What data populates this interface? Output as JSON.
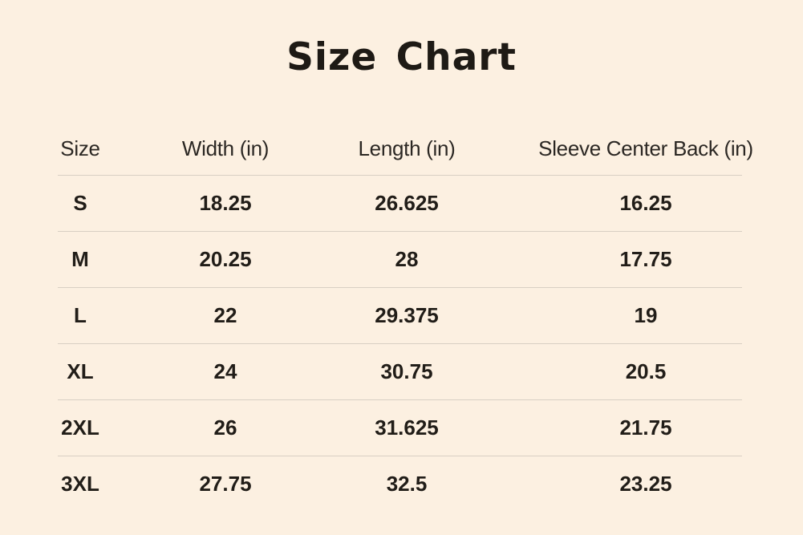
{
  "title": "Size Chart",
  "colors": {
    "background": "#FCF0E1",
    "title_text": "#1E1A15",
    "data_text": "#211D18",
    "header_text": "#2B2723",
    "divider_line": "#D8CFC3"
  },
  "table": {
    "columns": [
      "Size",
      "Width (in)",
      "Length (in)",
      "Sleeve Center Back (in)"
    ],
    "rows": [
      {
        "size": "S",
        "width": "18.25",
        "length": "26.625",
        "sleeve": "16.25"
      },
      {
        "size": "M",
        "width": "20.25",
        "length": "28",
        "sleeve": "17.75"
      },
      {
        "size": "L",
        "width": "22",
        "length": "29.375",
        "sleeve": "19"
      },
      {
        "size": "XL",
        "width": "24",
        "length": "30.75",
        "sleeve": "20.5"
      },
      {
        "size": "2XL",
        "width": "26",
        "length": "31.625",
        "sleeve": "21.75"
      },
      {
        "size": "3XL",
        "width": "27.75",
        "length": "32.5",
        "sleeve": "23.25"
      }
    ]
  },
  "chart_data": {
    "type": "table",
    "title": "Size Chart",
    "columns": [
      "Size",
      "Width (in)",
      "Length (in)",
      "Sleeve Center Back (in)"
    ],
    "rows": [
      [
        "S",
        18.25,
        26.625,
        16.25
      ],
      [
        "M",
        20.25,
        28,
        17.75
      ],
      [
        "L",
        22,
        29.375,
        19
      ],
      [
        "XL",
        24,
        30.75,
        20.5
      ],
      [
        "2XL",
        26,
        31.625,
        21.75
      ],
      [
        "3XL",
        27.75,
        32.5,
        23.25
      ]
    ]
  }
}
